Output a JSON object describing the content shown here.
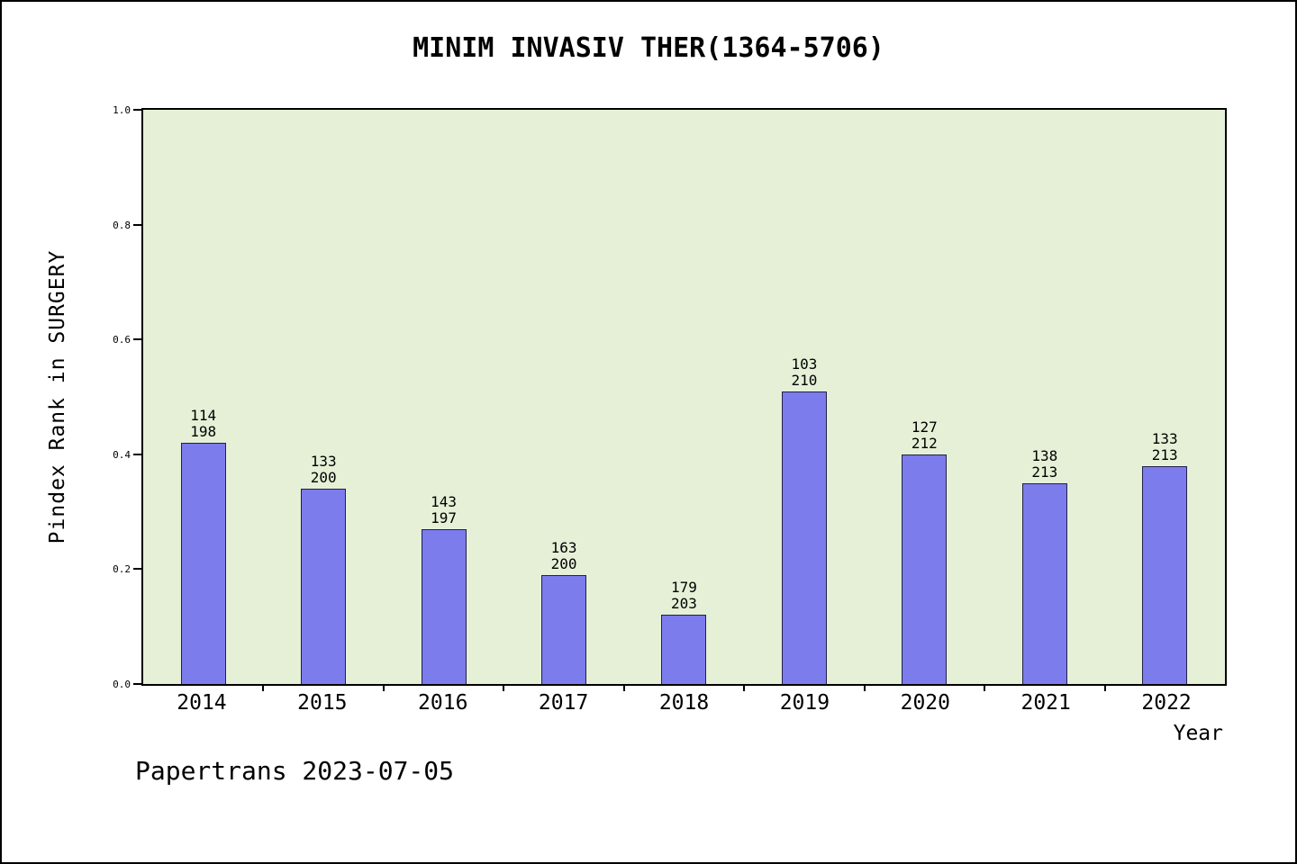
{
  "footer": "Papertrans 2023-07-05",
  "chart_data": {
    "type": "bar",
    "title": "MINIM INVASIV THER(1364-5706)",
    "xlabel": "Year",
    "ylabel": "Pindex Rank in SURGERY",
    "ylim": [
      0.0,
      1.0
    ],
    "ytick_labels": [
      "0.0",
      "0.2",
      "0.4",
      "0.6",
      "0.8",
      "1.0"
    ],
    "ytick_values": [
      0.0,
      0.2,
      0.4,
      0.6,
      0.8,
      1.0
    ],
    "grid": false,
    "legend": null,
    "plot_bg_color": "#e5f0d7",
    "bar_color": "#7c7cec",
    "categories": [
      "2014",
      "2015",
      "2016",
      "2017",
      "2018",
      "2019",
      "2020",
      "2021",
      "2022"
    ],
    "values": [
      0.42,
      0.34,
      0.27,
      0.19,
      0.12,
      0.51,
      0.4,
      0.35,
      0.38
    ],
    "bar_labels": [
      [
        "114",
        "198"
      ],
      [
        "133",
        "200"
      ],
      [
        "143",
        "197"
      ],
      [
        "163",
        "200"
      ],
      [
        "179",
        "203"
      ],
      [
        "103",
        "210"
      ],
      [
        "127",
        "212"
      ],
      [
        "138",
        "213"
      ],
      [
        "133",
        "213"
      ]
    ]
  }
}
